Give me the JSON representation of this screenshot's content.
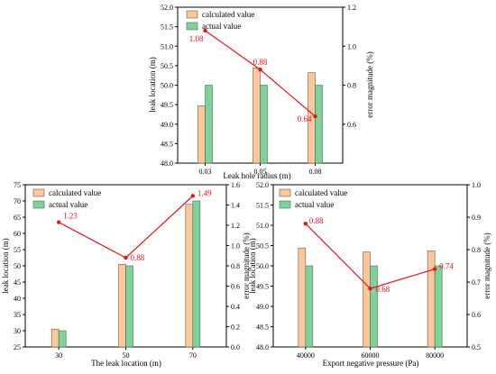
{
  "colors": {
    "calculated": "#fbc79b",
    "actual": "#7fd39a",
    "error": "#e8141b"
  },
  "chart_data": [
    {
      "type": "bar",
      "categories": [
        "0.03",
        "0.05",
        "0.08"
      ],
      "series": [
        {
          "name": "calculated value",
          "values": [
            49.47,
            50.44,
            50.32
          ]
        },
        {
          "name": "actual value",
          "values": [
            50.0,
            50.0,
            50.0
          ]
        }
      ],
      "error_series": {
        "values": [
          1.08,
          0.88,
          0.64
        ],
        "labels": [
          "1.08",
          "0.88",
          "0.64"
        ]
      },
      "xlabel": "Leak hole radius (m)",
      "ylabel": "leak location (m)",
      "y2label": "error magnitude (%)",
      "ylim": [
        48.0,
        52.0
      ],
      "yticks": [
        "48.0",
        "48.5",
        "49.0",
        "49.5",
        "50.0",
        "50.5",
        "51.0",
        "51.5",
        "52.0"
      ],
      "y2lim": [
        0.4,
        1.2
      ],
      "y2ticks": [
        "0.6",
        "0.8",
        "1.0",
        "1.2"
      ],
      "legend": "top-left"
    },
    {
      "type": "bar",
      "categories": [
        "30",
        "50",
        "70"
      ],
      "series": [
        {
          "name": "calculated value",
          "values": [
            30.5,
            50.5,
            69.0
          ]
        },
        {
          "name": "actual value",
          "values": [
            30.0,
            50.0,
            70.0
          ]
        }
      ],
      "error_series": {
        "values": [
          1.23,
          0.88,
          1.49
        ],
        "labels": [
          "1.23",
          "0.88",
          "1.49"
        ]
      },
      "xlabel": "The leak location (m)",
      "ylabel": "leak location (m)",
      "y2label": "error magnitude (%)",
      "ylim": [
        25,
        75
      ],
      "yticks": [
        "25",
        "30",
        "35",
        "40",
        "45",
        "50",
        "55",
        "60",
        "65",
        "70",
        "75"
      ],
      "y2lim": [
        0.0,
        1.6
      ],
      "y2ticks": [
        "0.0",
        "0.2",
        "0.4",
        "0.6",
        "0.8",
        "1.0",
        "1.2",
        "1.4",
        "1.6"
      ],
      "legend": "top-left"
    },
    {
      "type": "bar",
      "categories": [
        "40000",
        "60000",
        "80000"
      ],
      "series": [
        {
          "name": "calculated value",
          "values": [
            50.44,
            50.34,
            50.37
          ]
        },
        {
          "name": "actual value",
          "values": [
            50.0,
            50.0,
            50.0
          ]
        }
      ],
      "error_series": {
        "values": [
          0.88,
          0.68,
          0.74
        ],
        "labels": [
          "0.88",
          "0.68",
          "0.74"
        ]
      },
      "xlabel": "Export negative pressure (Pa)",
      "ylabel": "leak location (m)",
      "y2label": "error magnitude (%)",
      "ylim": [
        48.0,
        52.0
      ],
      "yticks": [
        "48.0",
        "48.5",
        "49.0",
        "49.5",
        "50.0",
        "50.5",
        "51.0",
        "51.5",
        "52.0"
      ],
      "y2lim": [
        0.5,
        1.0
      ],
      "y2ticks": [
        "0.5",
        "0.6",
        "0.7",
        "0.8",
        "0.9",
        "1.0"
      ],
      "legend": "top-left"
    }
  ]
}
